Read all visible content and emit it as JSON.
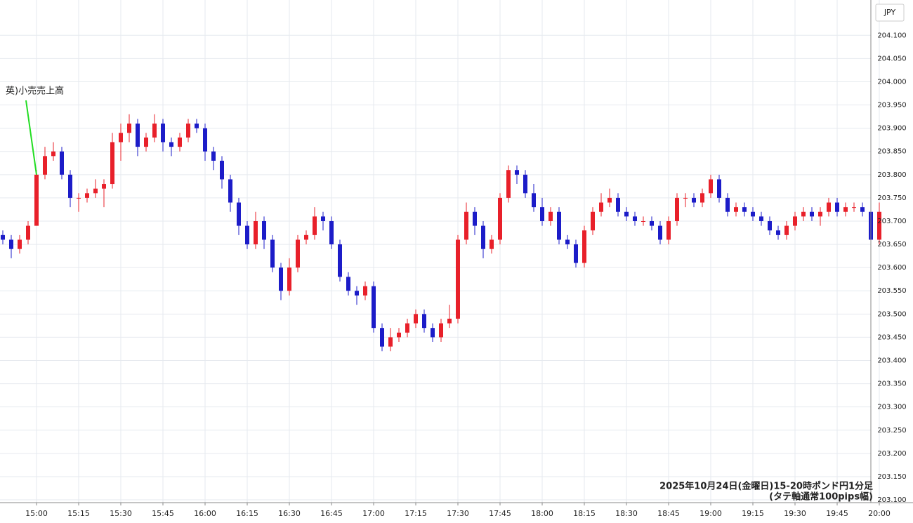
{
  "chart_data": {
    "type": "candlestick",
    "currency_label": "JPY",
    "annotation": "英)小売売上高",
    "caption": [
      "2025年10月24日(金曜日)15-20時ポンド円1分足",
      "(タテ軸通常100pips幅)"
    ],
    "up_color": "#e8202a",
    "down_color": "#1c1cc8",
    "annotation_color": "#22dd22",
    "grid": true,
    "ylim": [
      203.094,
      204.176
    ],
    "yticks": [
      {
        "value": 203.1,
        "label": "203.100"
      },
      {
        "value": 203.15,
        "label": "203.150"
      },
      {
        "value": 203.2,
        "label": "203.200"
      },
      {
        "value": 203.25,
        "label": "203.250"
      },
      {
        "value": 203.3,
        "label": "203.300"
      },
      {
        "value": 203.35,
        "label": "203.350"
      },
      {
        "value": 203.4,
        "label": "203.400"
      },
      {
        "value": 203.45,
        "label": "203.450"
      },
      {
        "value": 203.5,
        "label": "203.500"
      },
      {
        "value": 203.55,
        "label": "203.550"
      },
      {
        "value": 203.6,
        "label": "203.600"
      },
      {
        "value": 203.65,
        "label": "203.650"
      },
      {
        "value": 203.7,
        "label": "203.700"
      },
      {
        "value": 203.75,
        "label": "203.750"
      },
      {
        "value": 203.8,
        "label": "203.800"
      },
      {
        "value": 203.85,
        "label": "203.850"
      },
      {
        "value": 203.9,
        "label": "203.900"
      },
      {
        "value": 203.95,
        "label": "203.950"
      },
      {
        "value": 204.0,
        "label": "204.000"
      },
      {
        "value": 204.05,
        "label": "204.050"
      },
      {
        "value": 204.1,
        "label": "204.100"
      }
    ],
    "xticks": [
      "15:00",
      "15:15",
      "15:30",
      "15:45",
      "16:00",
      "16:15",
      "16:30",
      "16:45",
      "17:00",
      "17:15",
      "17:30",
      "17:45",
      "18:00",
      "18:15",
      "18:30",
      "18:45",
      "19:00",
      "19:15",
      "19:30",
      "19:45",
      "20:00"
    ],
    "x": [
      "14:48",
      "14:51",
      "14:54",
      "14:57",
      "15:00",
      "15:03",
      "15:06",
      "15:09",
      "15:12",
      "15:15",
      "15:18",
      "15:21",
      "15:24",
      "15:27",
      "15:30",
      "15:33",
      "15:36",
      "15:39",
      "15:42",
      "15:45",
      "15:48",
      "15:51",
      "15:54",
      "15:57",
      "16:00",
      "16:03",
      "16:06",
      "16:09",
      "16:12",
      "16:15",
      "16:18",
      "16:21",
      "16:24",
      "16:27",
      "16:30",
      "16:33",
      "16:36",
      "16:39",
      "16:42",
      "16:45",
      "16:48",
      "16:51",
      "16:54",
      "16:57",
      "17:00",
      "17:03",
      "17:06",
      "17:09",
      "17:12",
      "17:15",
      "17:18",
      "17:21",
      "17:24",
      "17:27",
      "17:30",
      "17:33",
      "17:36",
      "17:39",
      "17:42",
      "17:45",
      "17:48",
      "17:51",
      "17:54",
      "17:57",
      "18:00",
      "18:03",
      "18:06",
      "18:09",
      "18:12",
      "18:15",
      "18:18",
      "18:21",
      "18:24",
      "18:27",
      "18:30",
      "18:33",
      "18:36",
      "18:39",
      "18:42",
      "18:45",
      "18:48",
      "18:51",
      "18:54",
      "18:57",
      "19:00",
      "19:03",
      "19:06",
      "19:09",
      "19:12",
      "19:15",
      "19:18",
      "19:21",
      "19:24",
      "19:27",
      "19:30",
      "19:33",
      "19:36",
      "19:39",
      "19:42",
      "19:45",
      "19:48",
      "19:51",
      "19:54",
      "19:57",
      "20:00"
    ],
    "open": [
      203.67,
      203.66,
      203.64,
      203.66,
      203.69,
      203.8,
      203.84,
      203.85,
      203.8,
      203.75,
      203.75,
      203.76,
      203.77,
      203.78,
      203.87,
      203.89,
      203.91,
      203.86,
      203.88,
      203.91,
      203.87,
      203.86,
      203.88,
      203.91,
      203.9,
      203.85,
      203.83,
      203.79,
      203.74,
      203.69,
      203.65,
      203.7,
      203.66,
      203.6,
      203.55,
      203.6,
      203.66,
      203.67,
      203.71,
      203.7,
      203.65,
      203.58,
      203.55,
      203.54,
      203.56,
      203.47,
      203.43,
      203.45,
      203.46,
      203.48,
      203.5,
      203.47,
      203.45,
      203.48,
      203.49,
      203.66,
      203.72,
      203.69,
      203.64,
      203.66,
      203.75,
      203.81,
      203.8,
      203.76,
      203.73,
      203.7,
      203.72,
      203.66,
      203.65,
      203.61,
      203.68,
      203.72,
      203.74,
      203.75,
      203.72,
      203.71,
      203.7,
      203.7,
      203.69,
      203.66,
      203.7,
      203.75,
      203.75,
      203.74,
      203.76,
      203.79,
      203.75,
      203.72,
      203.73,
      203.72,
      203.71,
      203.7,
      203.68,
      203.67,
      203.69,
      203.71,
      203.72,
      203.71,
      203.72,
      203.74,
      203.72,
      203.73,
      203.73,
      203.72,
      203.66
    ],
    "high": [
      203.68,
      203.67,
      203.67,
      203.7,
      203.81,
      203.86,
      203.87,
      203.86,
      203.81,
      203.76,
      203.77,
      203.79,
      203.79,
      203.89,
      203.91,
      203.93,
      203.92,
      203.89,
      203.93,
      203.92,
      203.88,
      203.89,
      203.92,
      203.92,
      203.91,
      203.86,
      203.84,
      203.8,
      203.75,
      203.7,
      203.72,
      203.71,
      203.67,
      203.61,
      203.62,
      203.67,
      203.68,
      203.73,
      203.72,
      203.71,
      203.66,
      203.59,
      203.56,
      203.57,
      203.57,
      203.48,
      203.47,
      203.47,
      203.49,
      203.51,
      203.51,
      203.48,
      203.49,
      203.52,
      203.67,
      203.74,
      203.73,
      203.7,
      203.67,
      203.76,
      203.82,
      203.82,
      203.81,
      203.78,
      203.75,
      203.73,
      203.73,
      203.67,
      203.66,
      203.69,
      203.73,
      203.76,
      203.77,
      203.76,
      203.73,
      203.72,
      203.71,
      203.71,
      203.7,
      203.71,
      203.76,
      203.76,
      203.76,
      203.77,
      203.8,
      203.8,
      203.76,
      203.74,
      203.74,
      203.73,
      203.72,
      203.71,
      203.69,
      203.7,
      203.72,
      203.73,
      203.73,
      203.73,
      203.75,
      203.75,
      203.74,
      203.74,
      203.74,
      203.73,
      203.74
    ],
    "low": [
      203.65,
      203.62,
      203.63,
      203.65,
      203.69,
      203.79,
      203.83,
      203.79,
      203.73,
      203.72,
      203.74,
      203.75,
      203.73,
      203.77,
      203.83,
      203.87,
      203.84,
      203.85,
      203.87,
      203.85,
      203.84,
      203.85,
      203.87,
      203.89,
      203.83,
      203.81,
      203.77,
      203.72,
      203.67,
      203.64,
      203.64,
      203.64,
      203.59,
      203.53,
      203.54,
      203.59,
      203.65,
      203.66,
      203.68,
      203.64,
      203.57,
      203.54,
      203.52,
      203.53,
      203.46,
      203.42,
      203.42,
      203.44,
      203.45,
      203.47,
      203.46,
      203.44,
      203.44,
      203.47,
      203.48,
      203.65,
      203.67,
      203.62,
      203.63,
      203.65,
      203.74,
      203.78,
      203.75,
      203.72,
      203.69,
      203.69,
      203.65,
      203.64,
      203.6,
      203.6,
      203.67,
      203.71,
      203.73,
      203.71,
      203.7,
      203.69,
      203.69,
      203.68,
      203.65,
      203.65,
      203.69,
      203.73,
      203.73,
      203.73,
      203.75,
      203.74,
      203.71,
      203.71,
      203.71,
      203.7,
      203.69,
      203.67,
      203.66,
      203.66,
      203.68,
      203.7,
      203.7,
      203.69,
      203.71,
      203.71,
      203.71,
      203.72,
      203.71,
      203.65,
      203.65
    ],
    "close": [
      203.66,
      203.64,
      203.66,
      203.69,
      203.8,
      203.84,
      203.85,
      203.8,
      203.75,
      203.75,
      203.76,
      203.77,
      203.78,
      203.87,
      203.89,
      203.91,
      203.86,
      203.88,
      203.91,
      203.87,
      203.86,
      203.88,
      203.91,
      203.9,
      203.85,
      203.83,
      203.79,
      203.74,
      203.69,
      203.65,
      203.7,
      203.66,
      203.6,
      203.55,
      203.6,
      203.66,
      203.67,
      203.71,
      203.7,
      203.65,
      203.58,
      203.55,
      203.54,
      203.56,
      203.47,
      203.43,
      203.45,
      203.46,
      203.48,
      203.5,
      203.47,
      203.45,
      203.48,
      203.49,
      203.66,
      203.72,
      203.69,
      203.64,
      203.66,
      203.75,
      203.81,
      203.8,
      203.76,
      203.73,
      203.7,
      203.72,
      203.66,
      203.65,
      203.61,
      203.68,
      203.72,
      203.74,
      203.75,
      203.72,
      203.71,
      203.7,
      203.7,
      203.69,
      203.66,
      203.7,
      203.75,
      203.75,
      203.74,
      203.76,
      203.79,
      203.75,
      203.72,
      203.73,
      203.72,
      203.71,
      203.7,
      203.68,
      203.67,
      203.69,
      203.71,
      203.72,
      203.71,
      203.72,
      203.74,
      203.72,
      203.73,
      203.73,
      203.72,
      203.66,
      203.72
    ]
  }
}
